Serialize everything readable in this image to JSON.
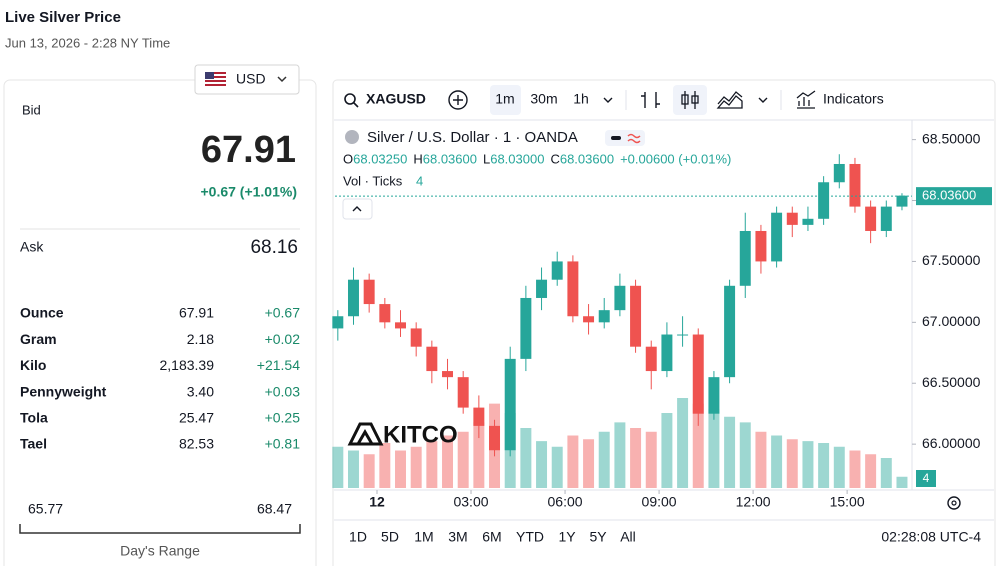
{
  "ui": {
    "title": "Live Silver Price",
    "date": "Jun 13, 2026 - 2:28 NY Time",
    "currency": "USD",
    "bid_label": "Bid",
    "bid": "67.91",
    "bid_change": "+0.67 (+1.01%)",
    "ask_label": "Ask",
    "ask": "68.16",
    "rows": [
      [
        "Ounce",
        "67.91",
        "+0.67"
      ],
      [
        "Gram",
        "2.18",
        "+0.02"
      ],
      [
        "Kilo",
        "2,183.39",
        "+21.54"
      ],
      [
        "Pennyweight",
        "3.40",
        "+0.03"
      ],
      [
        "Tola",
        "25.47",
        "+0.25"
      ],
      [
        "Tael",
        "82.53",
        "+0.81"
      ]
    ],
    "range_low": "65.77",
    "range_high": "68.47",
    "range_label": "Day's Range",
    "symbol": "XAGUSD",
    "intervals": [
      "1m",
      "30m",
      "1h"
    ],
    "indicators": "Indicators",
    "instrument": "Silver / U.S. Dollar · 1 · OANDA",
    "ohlc": [
      [
        "O",
        "68.03250"
      ],
      [
        "H",
        "68.03600"
      ],
      [
        "L",
        "68.03000"
      ],
      [
        "C",
        "68.03600"
      ]
    ],
    "ohlc_change": "+0.00600 (+0.01%)",
    "vol_label": "Vol · Ticks",
    "vol_value": "4",
    "vol_badge": "4",
    "watermark": "KITCO",
    "ranges": [
      "1D",
      "5D",
      "1M",
      "3M",
      "6M",
      "YTD",
      "1Y",
      "5Y",
      "All"
    ],
    "clock": "02:28:08 UTC-4"
  },
  "chart_data": {
    "type": "candlestick",
    "x": [
      -1.25,
      -0.75,
      -0.25,
      0.25,
      0.75,
      1.25,
      1.75,
      2.25,
      2.75,
      3.25,
      3.75,
      4.25,
      4.75,
      5.25,
      5.75,
      6.25,
      6.75,
      7.25,
      7.75,
      8.25,
      8.75,
      9.25,
      9.75,
      10.25,
      10.75,
      11.25,
      11.75,
      12.25,
      12.75,
      13.25,
      13.75,
      14.25,
      14.75,
      15.25,
      15.75,
      16.25,
      16.75
    ],
    "open": [
      66.95,
      67.05,
      67.35,
      67.15,
      67.0,
      66.95,
      66.8,
      66.6,
      66.55,
      66.3,
      66.15,
      65.95,
      66.7,
      67.2,
      67.35,
      67.5,
      67.05,
      67.0,
      67.1,
      67.3,
      66.8,
      66.6,
      66.9,
      66.9,
      66.25,
      66.55,
      67.3,
      67.75,
      67.5,
      67.9,
      67.8,
      67.85,
      68.15,
      68.3,
      67.95,
      67.75,
      67.95
    ],
    "high": [
      67.1,
      67.45,
      67.4,
      67.2,
      67.1,
      67.0,
      66.85,
      66.7,
      66.6,
      66.4,
      66.2,
      66.8,
      67.3,
      67.45,
      67.58,
      67.55,
      67.15,
      67.2,
      67.4,
      67.35,
      66.85,
      67.0,
      67.05,
      66.95,
      66.6,
      67.35,
      67.9,
      67.8,
      67.95,
      67.95,
      67.95,
      68.2,
      68.38,
      68.35,
      68.0,
      68.0,
      68.06
    ],
    "low": [
      66.85,
      66.98,
      67.08,
      66.95,
      66.88,
      66.72,
      66.5,
      66.45,
      66.25,
      66.05,
      65.9,
      65.9,
      66.6,
      67.1,
      67.3,
      67.0,
      66.9,
      66.95,
      67.05,
      66.75,
      66.45,
      66.55,
      66.8,
      66.15,
      66.2,
      66.5,
      67.2,
      67.4,
      67.45,
      67.7,
      67.75,
      67.8,
      68.1,
      67.9,
      67.65,
      67.7,
      67.92
    ],
    "close": [
      67.05,
      67.35,
      67.15,
      67.0,
      66.95,
      66.8,
      66.6,
      66.55,
      66.3,
      66.15,
      65.95,
      66.7,
      67.2,
      67.35,
      67.5,
      67.05,
      67.0,
      67.1,
      67.3,
      66.8,
      66.6,
      66.9,
      66.9,
      66.25,
      66.55,
      67.3,
      67.75,
      67.5,
      67.9,
      67.8,
      67.85,
      68.15,
      68.3,
      67.95,
      67.75,
      67.95,
      68.04
    ],
    "volume": [
      22,
      20,
      18,
      24,
      20,
      22,
      25,
      28,
      30,
      35,
      45,
      40,
      32,
      25,
      22,
      28,
      26,
      30,
      35,
      32,
      30,
      40,
      48,
      45,
      42,
      38,
      35,
      30,
      28,
      26,
      25,
      24,
      22,
      20,
      18,
      16,
      6
    ],
    "up_color": "#26a69a",
    "down_color": "#ef5350",
    "ylim": [
      65.64,
      68.62
    ],
    "yticks": [
      {
        "value": 66.0,
        "label": "66.00000"
      },
      {
        "value": 66.5,
        "label": "66.50000"
      },
      {
        "value": 67.0,
        "label": "67.00000"
      },
      {
        "value": 67.5,
        "label": "67.50000"
      },
      {
        "value": 68.0,
        "label": "68.00000"
      },
      {
        "value": 68.5,
        "label": "68.50000"
      }
    ],
    "xlim": [
      -1.34,
      17.07
    ],
    "xticks": [
      {
        "value": 0,
        "label": "12"
      },
      {
        "value": 3,
        "label": "03:00"
      },
      {
        "value": 6,
        "label": "06:00"
      },
      {
        "value": 9,
        "label": "09:00"
      },
      {
        "value": 12,
        "label": "12:00"
      },
      {
        "value": 15,
        "label": "15:00"
      }
    ],
    "last": {
      "value": 68.036,
      "label": "68.03600"
    }
  }
}
